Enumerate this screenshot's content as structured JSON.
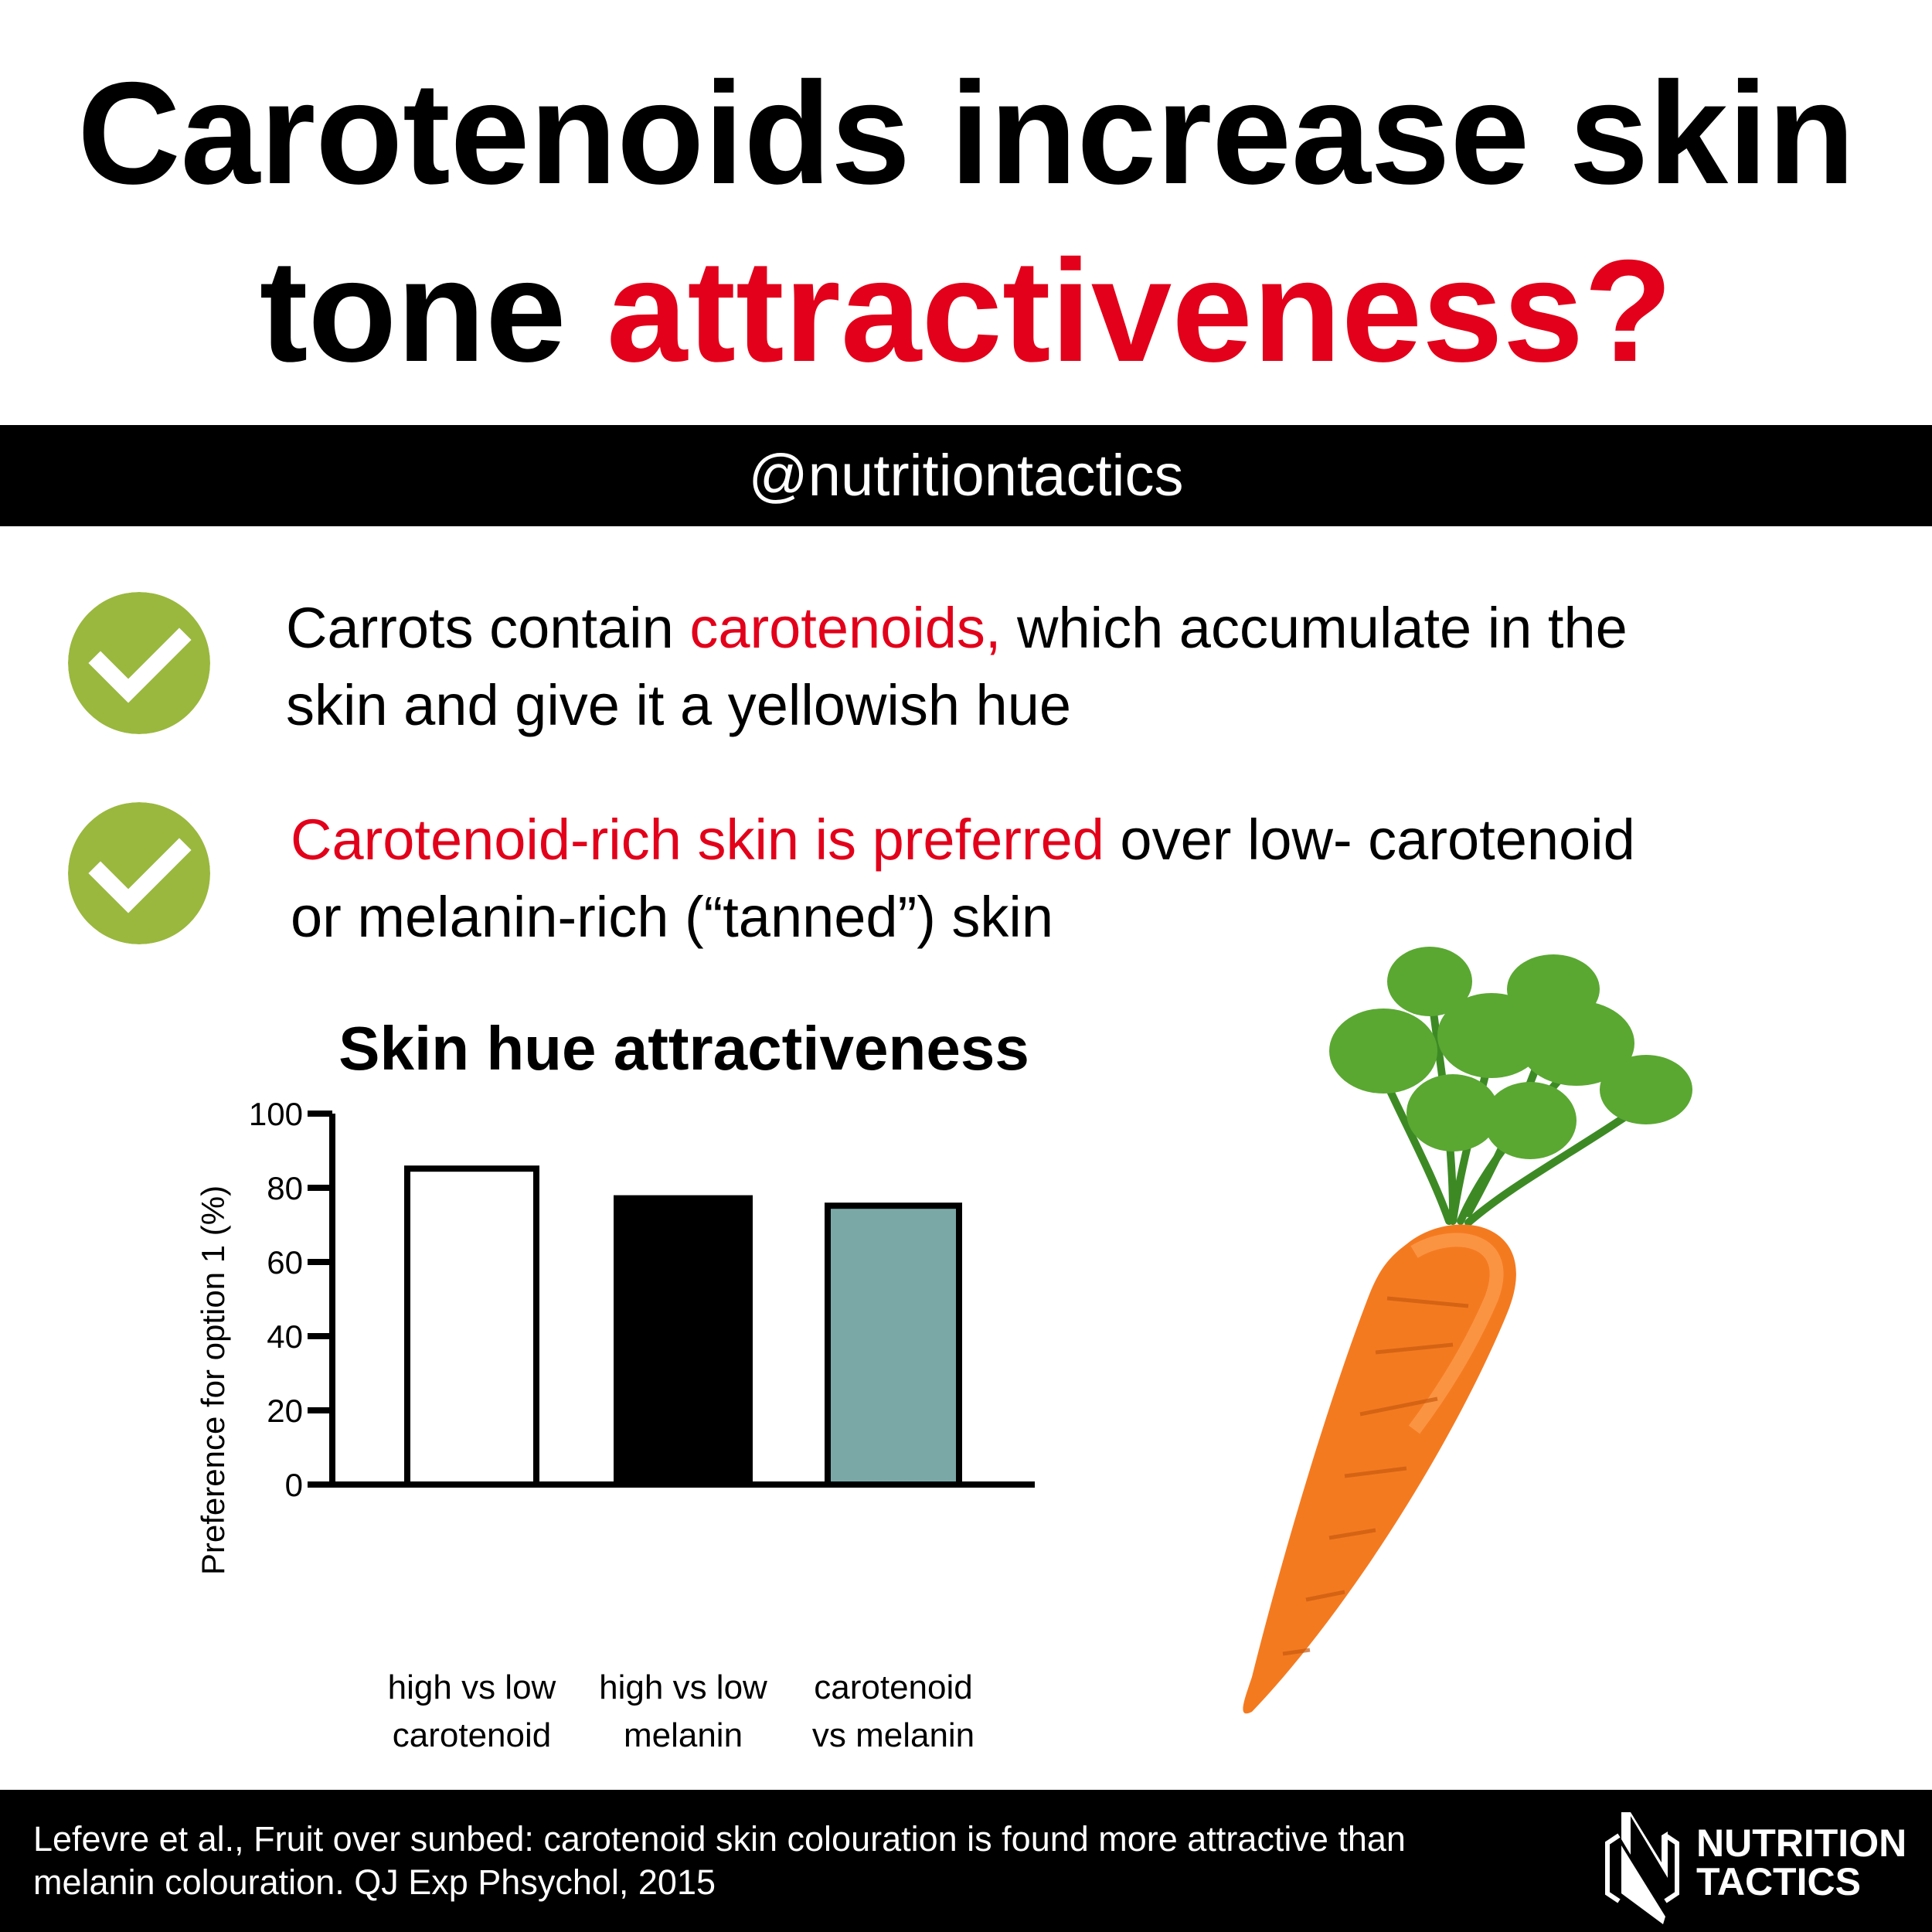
{
  "header": {
    "title_line1": "Carotenoids increase skin",
    "title_line2_black": "tone",
    "title_line2_red": "attractiveness?"
  },
  "band": {
    "handle": "@nutritiontactics"
  },
  "bullets": [
    {
      "icon": "check-circle-icon",
      "red": "carotenoids,",
      "before": "Carrots contain ",
      "after": " which accumulate in the",
      "line2": "skin and give it a yellowish hue"
    },
    {
      "icon": "check-circle-icon",
      "red": "Carotenoid-rich skin is preferred",
      "after": " over low- carotenoid",
      "line2": "or melanin-rich (“tanned”) skin"
    }
  ],
  "colors": {
    "accent_red": "#e2001a",
    "check_green": "#9ab83e",
    "teal": "#7aa8a7",
    "carrot": "#f47a20",
    "leaves": "#4f9a2c"
  },
  "chart_data": {
    "type": "bar",
    "title": "Skin hue attractiveness",
    "ylabel": "Preference for option 1  (%)",
    "xlabel": "",
    "ylim": [
      0,
      100
    ],
    "yticks": [
      "0",
      "20",
      "40",
      "60",
      "80",
      "100"
    ],
    "grid": false,
    "categories": [
      [
        "high vs low",
        "carotenoid"
      ],
      [
        "high vs low",
        "melanin"
      ],
      [
        "carotenoid",
        "vs melanin"
      ]
    ],
    "values": [
      86,
      78,
      76
    ],
    "bar_colors": [
      "#ffffff",
      "#000000",
      "#7aa8a7"
    ]
  },
  "footer": {
    "citation_line1": "Lefevre et al., Fruit over sunbed: carotenoid skin colouration is found more attractive than",
    "citation_line2": "melanin colouration. QJ Exp Phsychol, 2015",
    "logo_line1": "NUTRITION",
    "logo_line2": "TACTICS"
  }
}
